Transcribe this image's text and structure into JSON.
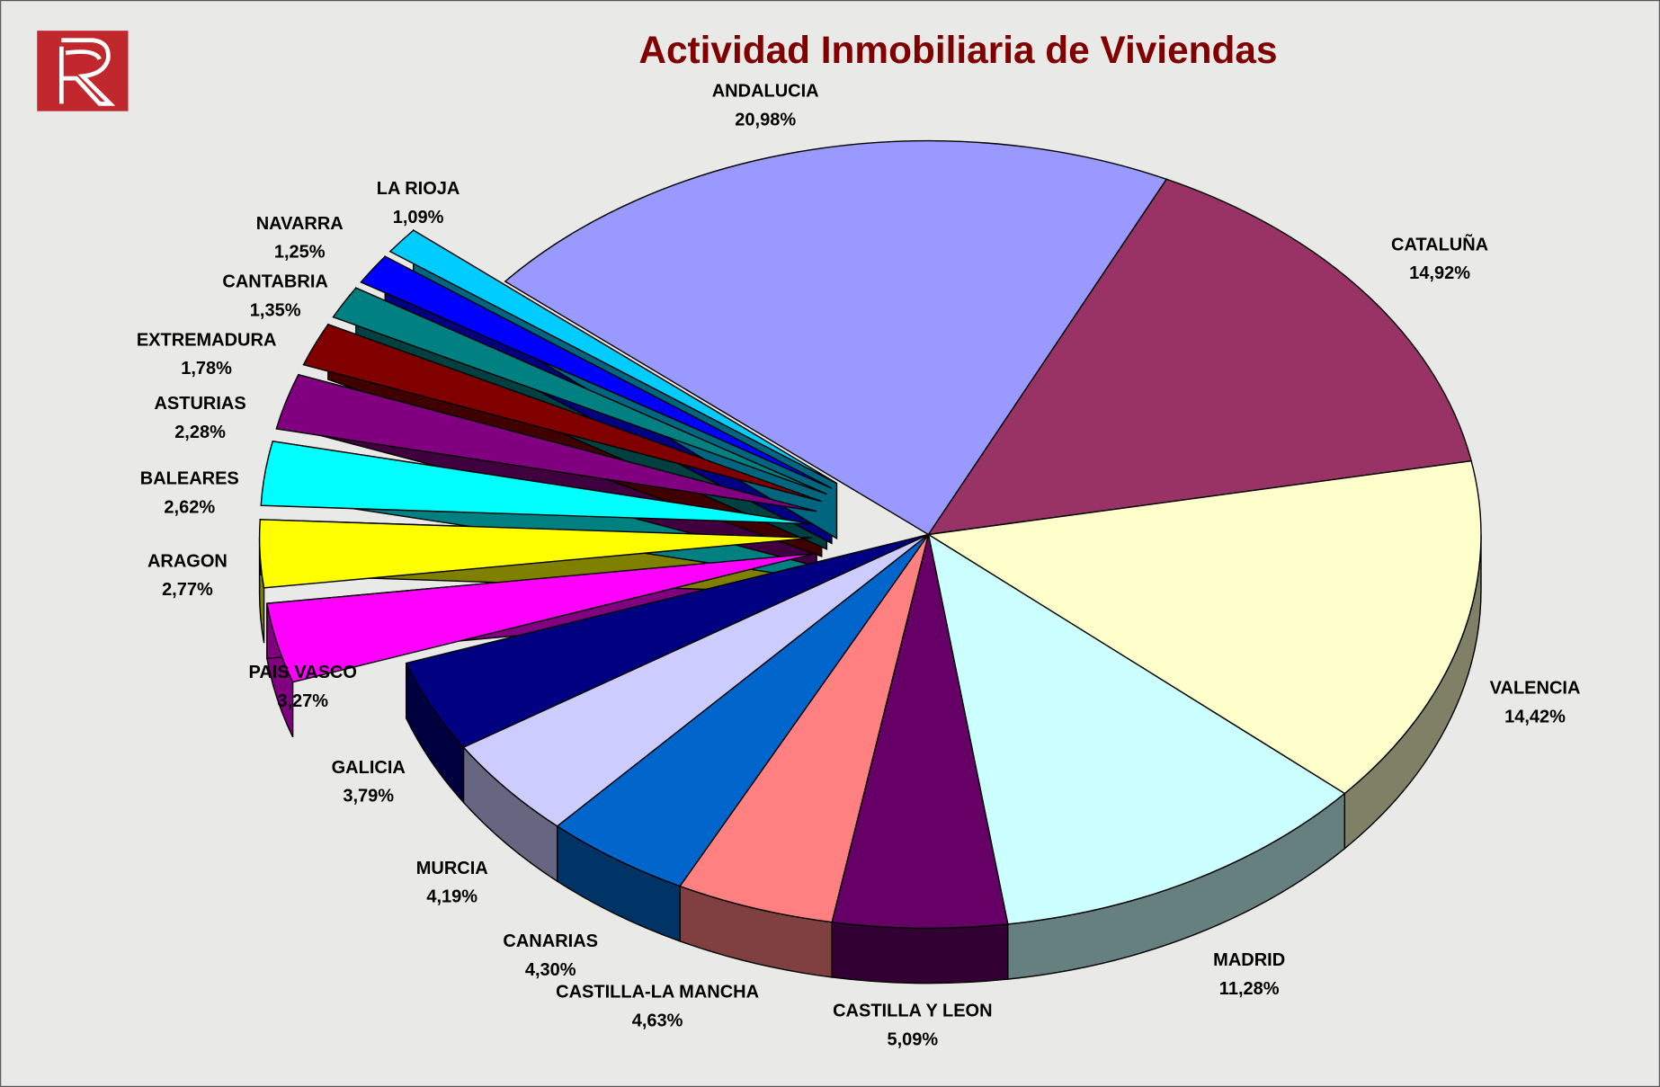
{
  "chart_data": {
    "type": "pie",
    "title": "Actividad Inmobiliaria de Viviendas",
    "categories": [
      "ANDALUCIA",
      "CATALUÑA",
      "VALENCIA",
      "MADRID",
      "CASTILLA Y LEON",
      "CASTILLA-LA MANCHA",
      "CANARIAS",
      "MURCIA",
      "GALICIA",
      "PAIS VASCO",
      "ARAGON",
      "BALEARES",
      "ASTURIAS",
      "EXTREMADURA",
      "CANTABRIA",
      "NAVARRA",
      "LA RIOJA"
    ],
    "values": [
      20.98,
      14.92,
      14.42,
      11.28,
      5.09,
      4.63,
      4.3,
      4.19,
      3.79,
      3.27,
      2.77,
      2.62,
      2.28,
      1.78,
      1.35,
      1.25,
      1.09
    ],
    "value_labels": [
      "20,98%",
      "14,92%",
      "14,42%",
      "11,28%",
      "5,09%",
      "4,63%",
      "4,30%",
      "4,19%",
      "3,79%",
      "3,27%",
      "2,77%",
      "2,62%",
      "2,28%",
      "1,78%",
      "1,35%",
      "1,25%",
      "1,09%"
    ],
    "colors": [
      "#9999ff",
      "#993366",
      "#ffffcc",
      "#ccffff",
      "#660066",
      "#ff8080",
      "#0066cc",
      "#ccccff",
      "#000080",
      "#ff00ff",
      "#ffff00",
      "#00ffff",
      "#800080",
      "#800000",
      "#008080",
      "#0000ff",
      "#00ccff"
    ]
  }
}
